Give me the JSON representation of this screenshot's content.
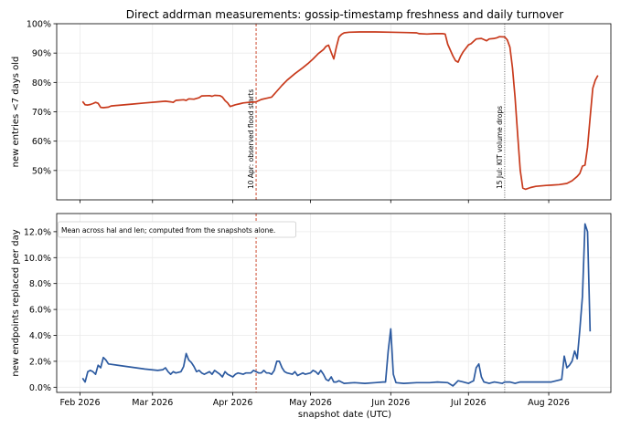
{
  "chart_data": {
    "title": "Direct addrman measurements: gossip-timestamp freshness and daily turnover",
    "xlabel": "snapshot date (UTC)",
    "x_ticks": [
      "Feb 2026",
      "Mar 2026",
      "Apr 2026",
      "May 2026",
      "Jun 2026",
      "Jul 2026",
      "Aug 2026"
    ],
    "x_range_days": [
      -9,
      205
    ],
    "panels": [
      {
        "type": "line",
        "ylabel": "new entries <7 days old",
        "ylim": [
          40,
          100
        ],
        "y_ticks": [
          50,
          60,
          70,
          80,
          90,
          100
        ],
        "y_tick_labels": [
          "50%",
          "60%",
          "70%",
          "80%",
          "90%",
          "100%"
        ],
        "grid": true,
        "color": "#c83a1c",
        "annotations": [
          {
            "day": 68,
            "label": "10 Apr: observed flood starts",
            "color": "#c83a1c",
            "style": "dashed"
          },
          {
            "day": 164,
            "label": "15 Jul: KIT volume drops",
            "color": "#555555",
            "style": "dotted"
          }
        ],
        "points": [
          [
            1,
            73.5
          ],
          [
            2,
            72.4
          ],
          [
            3,
            72.3
          ],
          [
            4,
            72.5
          ],
          [
            5,
            72.8
          ],
          [
            6,
            73.2
          ],
          [
            7,
            72.9
          ],
          [
            8,
            71.5
          ],
          [
            9,
            71.4
          ],
          [
            11,
            71.6
          ],
          [
            12,
            72.0
          ],
          [
            16,
            72.3
          ],
          [
            20,
            72.6
          ],
          [
            25,
            73.0
          ],
          [
            30,
            73.4
          ],
          [
            33,
            73.6
          ],
          [
            35,
            73.4
          ],
          [
            36,
            73.2
          ],
          [
            37,
            73.9
          ],
          [
            40,
            74.1
          ],
          [
            41,
            73.9
          ],
          [
            42,
            74.4
          ],
          [
            44,
            74.3
          ],
          [
            46,
            74.8
          ],
          [
            47,
            75.4
          ],
          [
            50,
            75.5
          ],
          [
            51,
            75.3
          ],
          [
            52,
            75.6
          ],
          [
            54,
            75.5
          ],
          [
            55,
            75.0
          ],
          [
            56,
            73.8
          ],
          [
            57,
            73.0
          ],
          [
            58,
            71.8
          ],
          [
            60,
            72.4
          ],
          [
            62,
            72.8
          ],
          [
            63,
            73.0
          ],
          [
            65,
            73.2
          ],
          [
            67,
            73.3
          ],
          [
            68,
            73.4
          ],
          [
            70,
            74.2
          ],
          [
            72,
            74.6
          ],
          [
            74,
            75.0
          ],
          [
            75,
            76.0
          ],
          [
            76,
            77.0
          ],
          [
            78,
            79.0
          ],
          [
            80,
            80.8
          ],
          [
            83,
            83.0
          ],
          [
            86,
            85.0
          ],
          [
            88,
            86.4
          ],
          [
            90,
            88.0
          ],
          [
            92,
            89.8
          ],
          [
            94,
            91.2
          ],
          [
            95,
            92.3
          ],
          [
            96,
            92.7
          ],
          [
            97,
            90.2
          ],
          [
            98,
            88.0
          ],
          [
            99,
            92.0
          ],
          [
            100,
            95.5
          ],
          [
            101,
            96.4
          ],
          [
            102,
            96.9
          ],
          [
            104,
            97.1
          ],
          [
            108,
            97.2
          ],
          [
            114,
            97.2
          ],
          [
            120,
            97.1
          ],
          [
            126,
            97.0
          ],
          [
            130,
            96.9
          ],
          [
            131,
            96.6
          ],
          [
            134,
            96.5
          ],
          [
            137,
            96.6
          ],
          [
            140,
            96.6
          ],
          [
            141,
            96.5
          ],
          [
            142,
            93.0
          ],
          [
            144,
            89.0
          ],
          [
            145,
            87.4
          ],
          [
            146,
            86.9
          ],
          [
            147,
            89.0
          ],
          [
            148,
            90.5
          ],
          [
            150,
            92.8
          ],
          [
            151,
            93.2
          ],
          [
            152,
            94.0
          ],
          [
            153,
            94.8
          ],
          [
            155,
            95.0
          ],
          [
            156,
            94.6
          ],
          [
            157,
            94.2
          ],
          [
            158,
            94.8
          ],
          [
            160,
            95.0
          ],
          [
            161,
            95.2
          ],
          [
            162,
            95.6
          ],
          [
            164,
            95.5
          ],
          [
            165,
            94.5
          ],
          [
            166,
            92.0
          ],
          [
            167,
            85.0
          ],
          [
            168,
            75.0
          ],
          [
            169,
            62.0
          ],
          [
            170,
            50.0
          ],
          [
            171,
            44.0
          ],
          [
            172,
            43.6
          ],
          [
            174,
            44.2
          ],
          [
            176,
            44.6
          ],
          [
            180,
            44.9
          ],
          [
            182,
            45.0
          ],
          [
            185,
            45.2
          ],
          [
            188,
            45.6
          ],
          [
            190,
            46.5
          ],
          [
            192,
            48.0
          ],
          [
            193,
            49.0
          ],
          [
            194,
            51.5
          ],
          [
            195,
            51.8
          ],
          [
            196,
            58.0
          ],
          [
            197,
            68.0
          ],
          [
            198,
            78.0
          ],
          [
            199,
            80.8
          ],
          [
            200,
            82.4
          ]
        ]
      },
      {
        "type": "line",
        "ylabel": "new endpoints replaced per day",
        "ylim": [
          -0.4,
          13.4
        ],
        "y_ticks": [
          0,
          2,
          4,
          6,
          8,
          10,
          12
        ],
        "y_tick_labels": [
          "0.0%",
          "2.0%",
          "4.0%",
          "6.0%",
          "8.0%",
          "10.0%",
          "12.0%"
        ],
        "grid": true,
        "color": "#2c5aa0",
        "legend_text": "Mean across hal and len; computed from the snapshots alone.",
        "annotations": [
          {
            "day": 68,
            "color": "#c83a1c",
            "style": "dashed"
          },
          {
            "day": 164,
            "color": "#555555",
            "style": "dotted"
          }
        ],
        "points": [
          [
            1,
            0.7
          ],
          [
            2,
            0.4
          ],
          [
            3,
            1.2
          ],
          [
            4,
            1.3
          ],
          [
            5,
            1.2
          ],
          [
            6,
            1.0
          ],
          [
            7,
            1.7
          ],
          [
            8,
            1.5
          ],
          [
            9,
            2.3
          ],
          [
            10,
            2.1
          ],
          [
            11,
            1.8
          ],
          [
            18,
            1.6
          ],
          [
            25,
            1.4
          ],
          [
            30,
            1.3
          ],
          [
            32,
            1.35
          ],
          [
            33,
            1.5
          ],
          [
            34,
            1.2
          ],
          [
            35,
            1.0
          ],
          [
            36,
            1.2
          ],
          [
            37,
            1.1
          ],
          [
            39,
            1.2
          ],
          [
            40,
            1.6
          ],
          [
            41,
            2.6
          ],
          [
            42,
            2.1
          ],
          [
            43,
            1.9
          ],
          [
            44,
            1.6
          ],
          [
            45,
            1.2
          ],
          [
            46,
            1.3
          ],
          [
            47,
            1.1
          ],
          [
            48,
            1.0
          ],
          [
            50,
            1.2
          ],
          [
            51,
            1.0
          ],
          [
            52,
            1.3
          ],
          [
            54,
            1.0
          ],
          [
            55,
            0.8
          ],
          [
            56,
            1.2
          ],
          [
            57,
            1.0
          ],
          [
            59,
            0.8
          ],
          [
            60,
            1.0
          ],
          [
            61,
            1.1
          ],
          [
            63,
            1.0
          ],
          [
            64,
            1.1
          ],
          [
            66,
            1.1
          ],
          [
            67,
            1.3
          ],
          [
            68,
            1.2
          ],
          [
            69,
            1.1
          ],
          [
            70,
            1.1
          ],
          [
            71,
            1.3
          ],
          [
            72,
            1.1
          ],
          [
            73,
            1.1
          ],
          [
            74,
            1.0
          ],
          [
            75,
            1.3
          ],
          [
            76,
            2.0
          ],
          [
            77,
            2.0
          ],
          [
            78,
            1.5
          ],
          [
            79,
            1.2
          ],
          [
            80,
            1.1
          ],
          [
            82,
            1.0
          ],
          [
            83,
            1.2
          ],
          [
            84,
            0.9
          ],
          [
            86,
            1.1
          ],
          [
            87,
            1.0
          ],
          [
            89,
            1.1
          ],
          [
            90,
            1.3
          ],
          [
            91,
            1.2
          ],
          [
            92,
            1.0
          ],
          [
            93,
            1.3
          ],
          [
            94,
            1.0
          ],
          [
            95,
            0.6
          ],
          [
            96,
            0.5
          ],
          [
            97,
            0.8
          ],
          [
            98,
            0.4
          ],
          [
            99,
            0.4
          ],
          [
            100,
            0.5
          ],
          [
            102,
            0.3
          ],
          [
            106,
            0.35
          ],
          [
            110,
            0.3
          ],
          [
            114,
            0.35
          ],
          [
            117,
            0.4
          ],
          [
            118,
            0.4
          ],
          [
            119,
            2.8
          ],
          [
            120,
            4.5
          ],
          [
            121,
            1.0
          ],
          [
            122,
            0.35
          ],
          [
            125,
            0.3
          ],
          [
            130,
            0.35
          ],
          [
            135,
            0.35
          ],
          [
            138,
            0.4
          ],
          [
            142,
            0.35
          ],
          [
            144,
            0.1
          ],
          [
            145,
            0.3
          ],
          [
            146,
            0.5
          ],
          [
            148,
            0.4
          ],
          [
            150,
            0.3
          ],
          [
            151,
            0.4
          ],
          [
            152,
            0.5
          ],
          [
            153,
            1.5
          ],
          [
            154,
            1.8
          ],
          [
            155,
            0.8
          ],
          [
            156,
            0.4
          ],
          [
            158,
            0.3
          ],
          [
            160,
            0.4
          ],
          [
            163,
            0.3
          ],
          [
            164,
            0.4
          ],
          [
            166,
            0.4
          ],
          [
            168,
            0.3
          ],
          [
            170,
            0.4
          ],
          [
            174,
            0.4
          ],
          [
            178,
            0.4
          ],
          [
            182,
            0.4
          ],
          [
            184,
            0.5
          ],
          [
            186,
            0.6
          ],
          [
            187,
            2.4
          ],
          [
            188,
            1.5
          ],
          [
            189,
            1.7
          ],
          [
            190,
            2.0
          ],
          [
            191,
            2.8
          ],
          [
            192,
            2.2
          ],
          [
            193,
            4.4
          ],
          [
            194,
            7.0
          ],
          [
            195,
            12.6
          ],
          [
            196,
            12.0
          ],
          [
            197,
            4.3
          ]
        ]
      }
    ]
  }
}
